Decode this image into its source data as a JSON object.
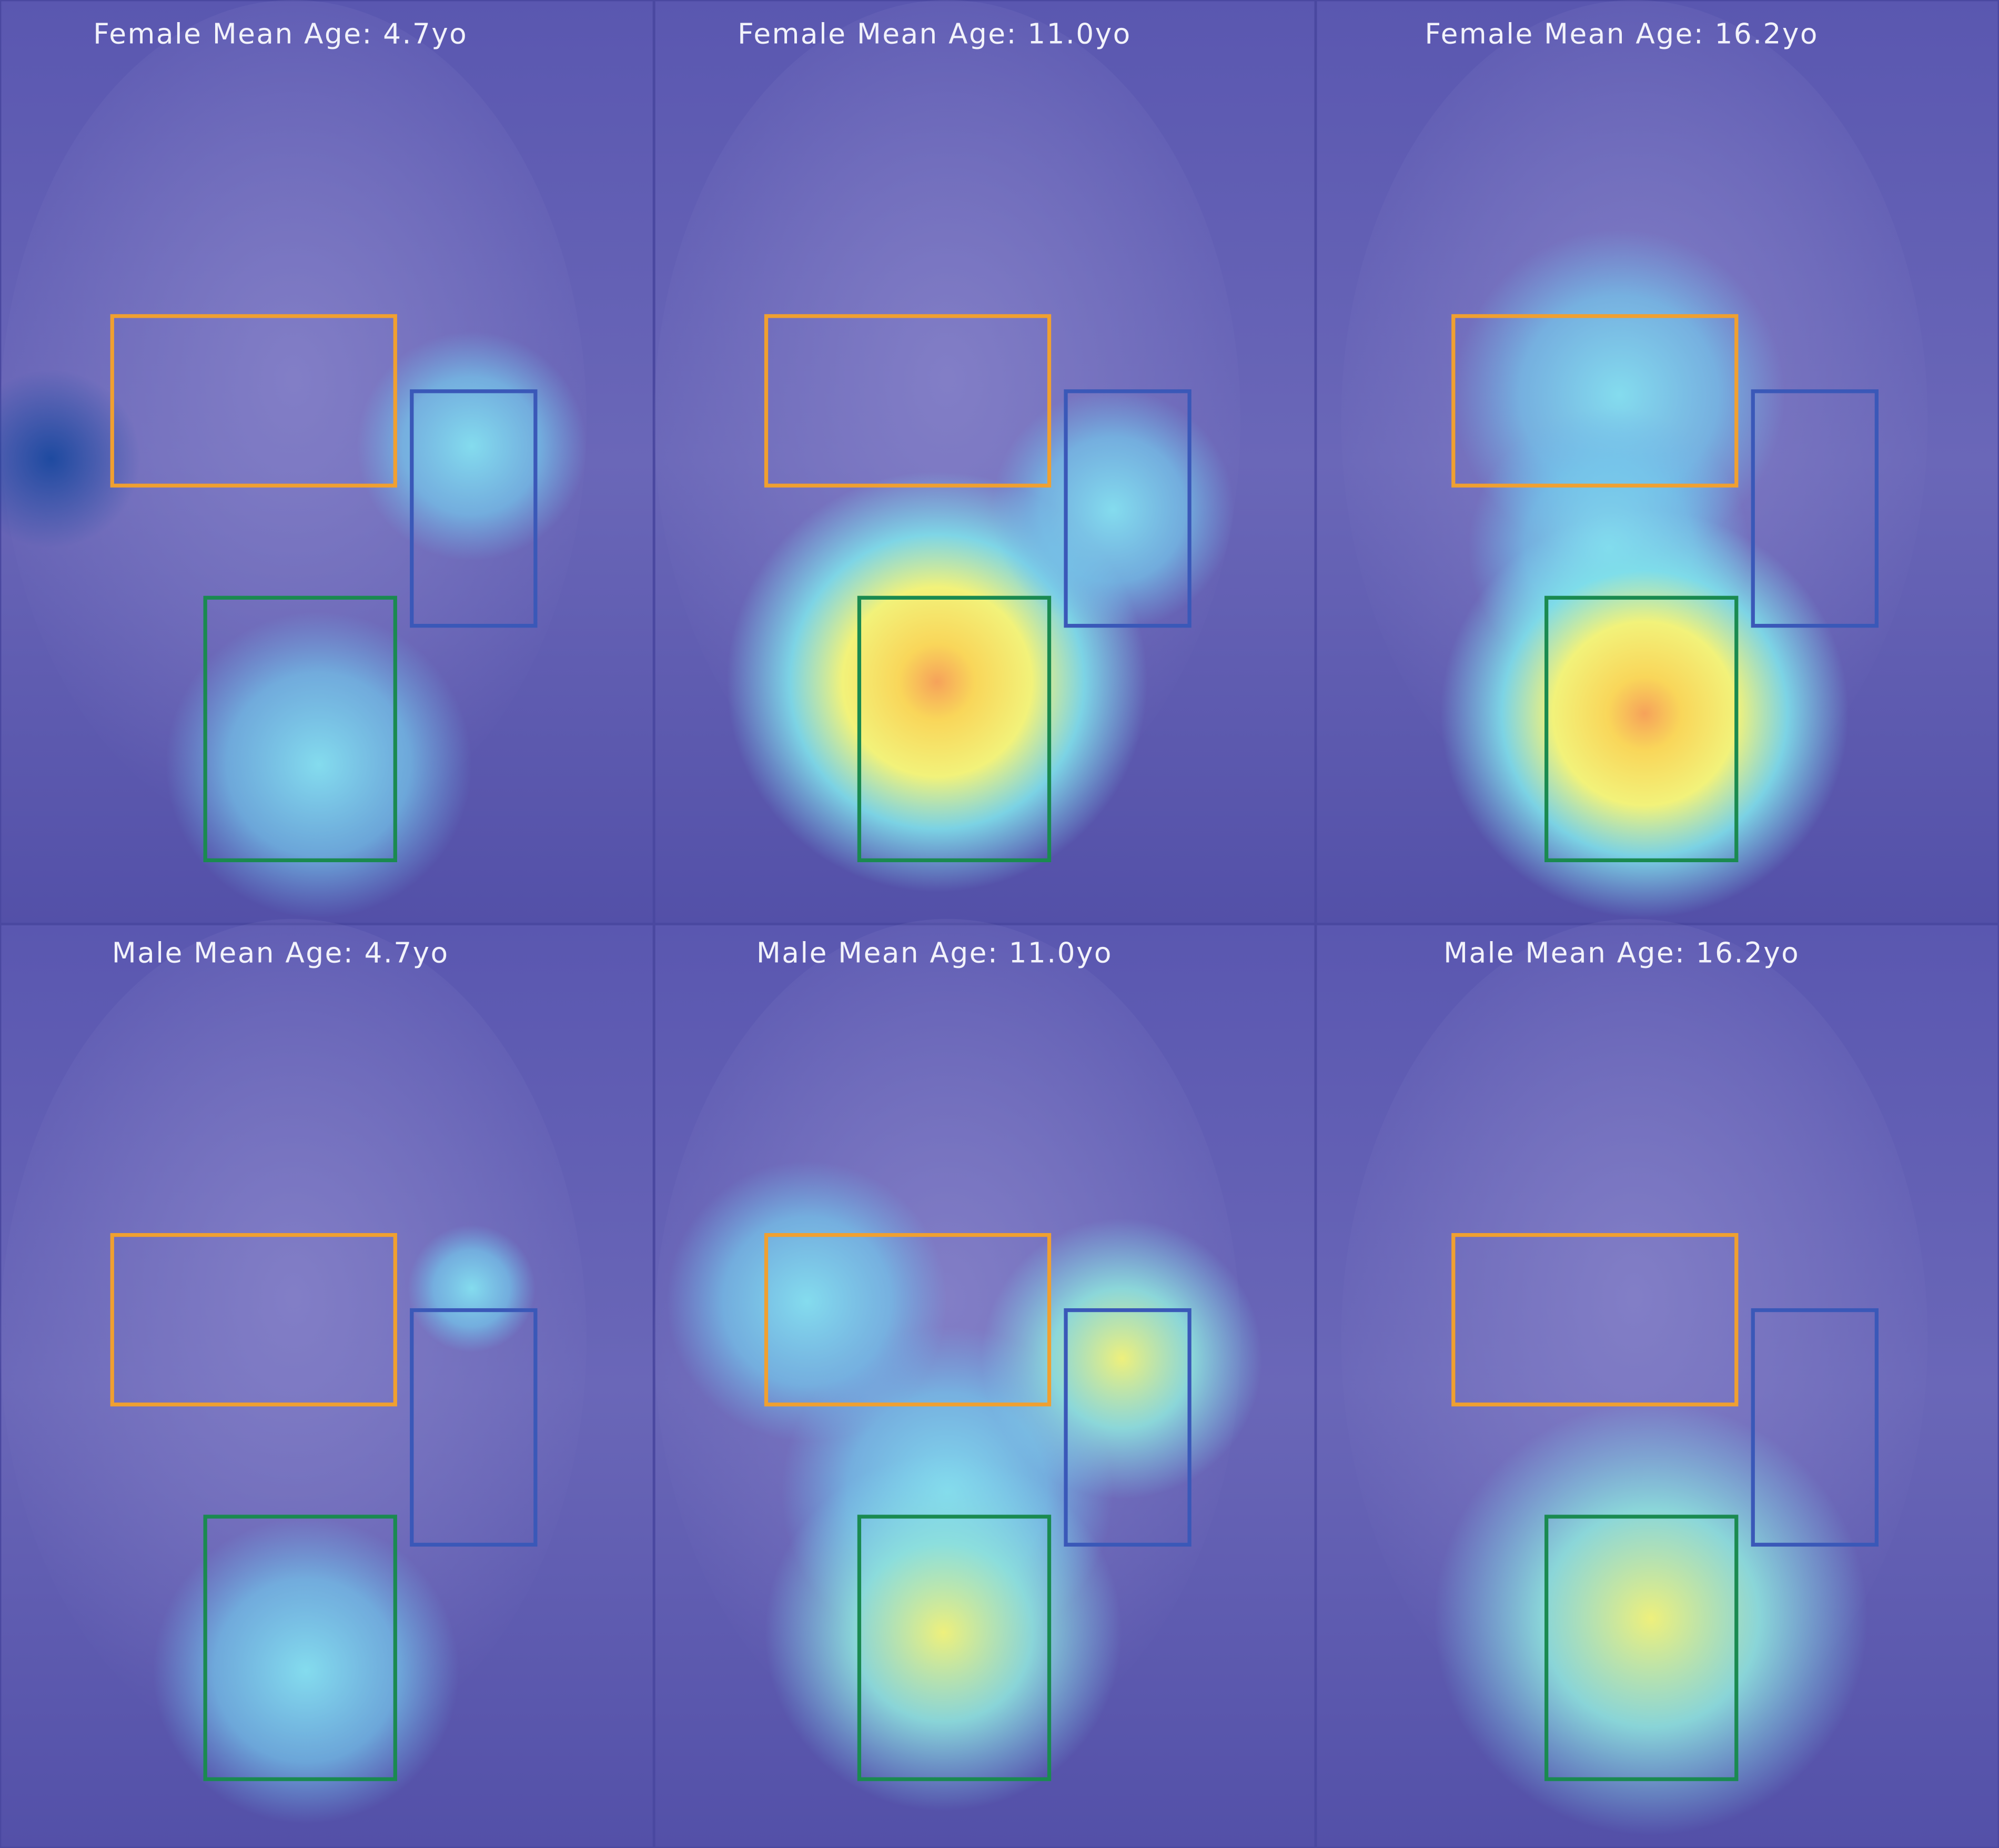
{
  "panels": [
    {
      "title": "Female Mean Age: 4.7yo"
    },
    {
      "title": "Female Mean Age: 11.0yo"
    },
    {
      "title": "Female Mean Age: 16.2yo"
    },
    {
      "title": "Male Mean Age: 4.7yo"
    },
    {
      "title": "Male Mean Age: 11.0yo"
    },
    {
      "title": "Male Mean Age: 16.2yo"
    }
  ]
}
